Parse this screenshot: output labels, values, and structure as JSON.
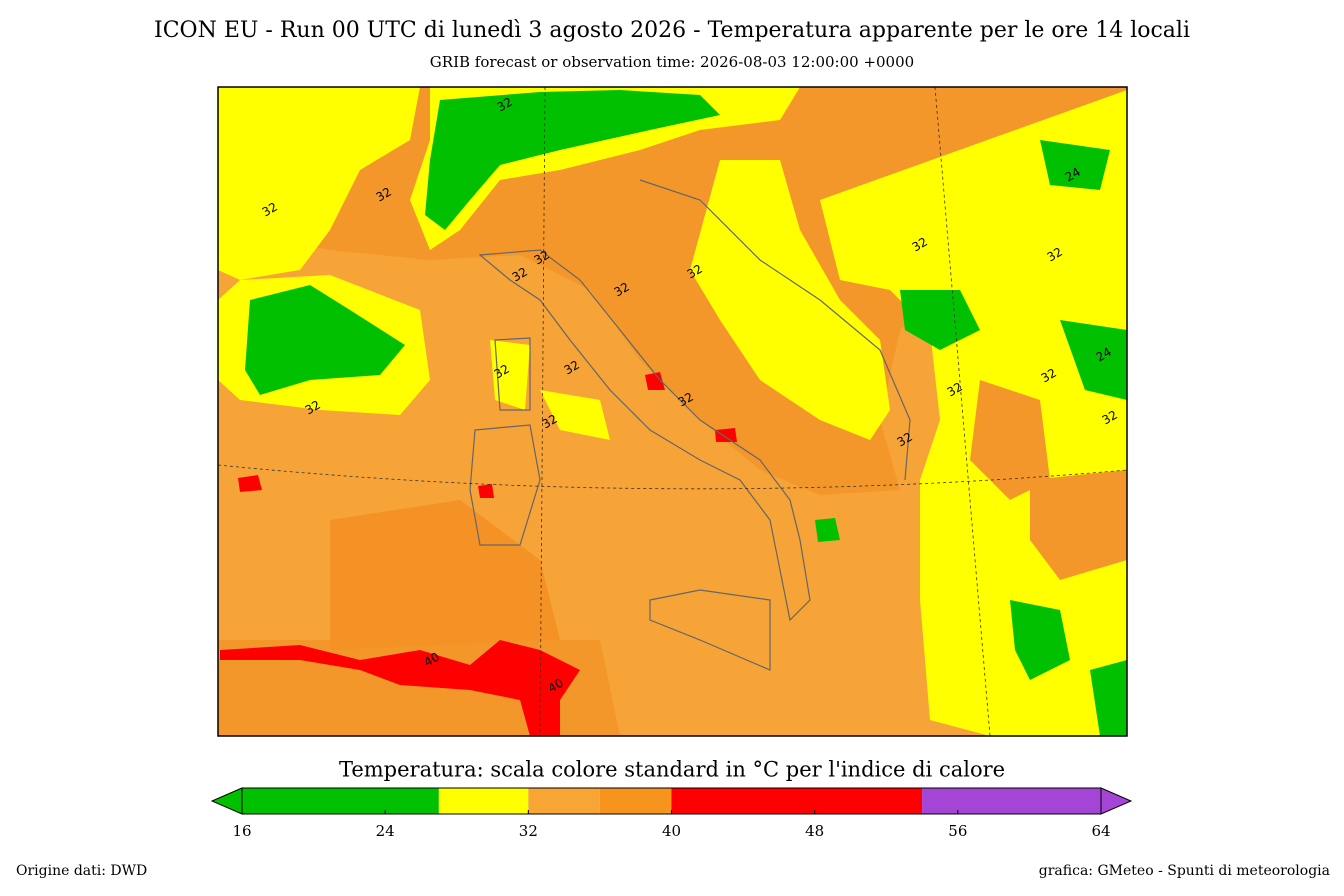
{
  "header": {
    "title": "ICON EU  - Run 00 UTC di lunedì 3 agosto 2026 -  Temperatura apparente per le ore 14 locali",
    "subtitle": "GRIB forecast or observation time: 2026-08-03 12:00:00 +0000"
  },
  "map": {
    "contour_labels": [
      "32",
      "32",
      "32",
      "32",
      "32",
      "32",
      "32",
      "32",
      "32",
      "32",
      "32",
      "32",
      "32",
      "32",
      "32",
      "32",
      "32",
      "32",
      "24",
      "24",
      "40",
      "40"
    ]
  },
  "colorbar": {
    "title": "Temperatura: scala colore standard in °C per l'indice di calore",
    "lim": [
      16,
      64
    ],
    "ticks": [
      16,
      24,
      32,
      40,
      48,
      56,
      64
    ],
    "segments": [
      {
        "from": 16,
        "to": 27,
        "color": "#00c000"
      },
      {
        "from": 27,
        "to": 32,
        "color": "#ffff00"
      },
      {
        "from": 32,
        "to": 36,
        "color": "#f7a535"
      },
      {
        "from": 36,
        "to": 40,
        "color": "#f7941d"
      },
      {
        "from": 40,
        "to": 54,
        "color": "#ff0000"
      },
      {
        "from": 54,
        "to": 64,
        "color": "#a545d6"
      }
    ]
  },
  "footer": {
    "left": "Origine dati: DWD",
    "right": "grafica: GMeteo - Spunti di meteorologia"
  }
}
